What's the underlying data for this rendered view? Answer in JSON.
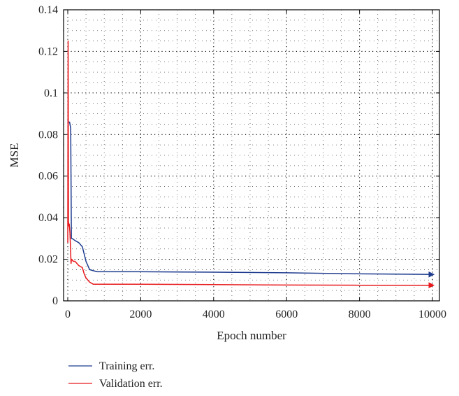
{
  "chart_data": {
    "type": "line",
    "title": "",
    "xlabel": "Epoch number",
    "ylabel": "MSE",
    "xlim": [
      0,
      10000
    ],
    "ylim": [
      0,
      0.14
    ],
    "xticks": [
      0,
      2000,
      4000,
      6000,
      8000,
      10000
    ],
    "yticks": [
      0,
      0.02,
      0.04,
      0.06,
      0.08,
      0.1,
      0.12,
      0.14
    ],
    "xtick_labels": [
      "0",
      "2000",
      "4000",
      "6000",
      "8000",
      "10000"
    ],
    "ytick_labels": [
      "0",
      "0.02",
      "0.04",
      "0.06",
      "0.08",
      "0.1",
      "0.12",
      "0.14"
    ],
    "grid": true,
    "legend_position": "bottom-left, below plot",
    "series": [
      {
        "name": "Training err.",
        "color": "#1f3c8f",
        "x": [
          0,
          20,
          50,
          80,
          100,
          120,
          200,
          300,
          400,
          500,
          600,
          700,
          800,
          1000,
          2000,
          4000,
          6000,
          8000,
          9500,
          10000
        ],
        "y": [
          0.087,
          0.086,
          0.086,
          0.083,
          0.03,
          0.03,
          0.029,
          0.028,
          0.026,
          0.019,
          0.015,
          0.0145,
          0.014,
          0.014,
          0.014,
          0.0138,
          0.0135,
          0.013,
          0.0128,
          0.0127
        ]
      },
      {
        "name": "Validation err.",
        "color": "#e8191c",
        "x": [
          0,
          10,
          20,
          30,
          40,
          60,
          90,
          100,
          110,
          150,
          200,
          300,
          400,
          450,
          500,
          600,
          700,
          800,
          1000,
          2000,
          4000,
          6000,
          8000,
          9500,
          10000
        ],
        "y": [
          0.028,
          0.125,
          0.038,
          0.036,
          0.037,
          0.033,
          0.018,
          0.02,
          0.02,
          0.019,
          0.019,
          0.017,
          0.016,
          0.013,
          0.011,
          0.009,
          0.008,
          0.008,
          0.008,
          0.008,
          0.0078,
          0.0076,
          0.0075,
          0.0075,
          0.0075
        ]
      }
    ]
  }
}
